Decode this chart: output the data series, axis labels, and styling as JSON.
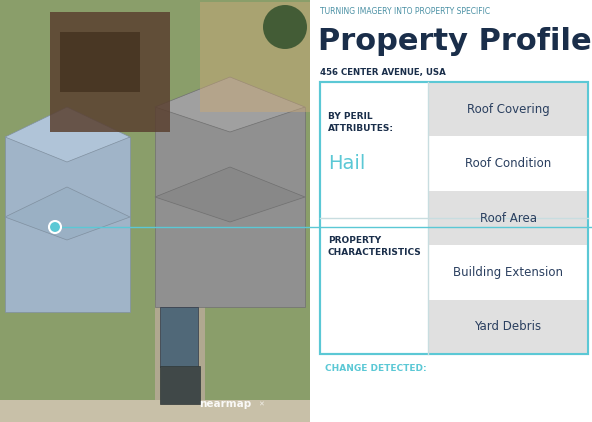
{
  "bg_color": "#ffffff",
  "tagline": "TURNING IMAGERY INTO PROPERTY SPECIFIC",
  "tagline_color": "#4a90a4",
  "title": "Property Profile",
  "title_color": "#1a2e4a",
  "address": "456 CENTER AVENUE, USA",
  "address_color": "#1a2e4a",
  "box_border_color": "#5bc8d5",
  "section1_label1": "BY PERIL",
  "section1_label2": "ATTRIBUTES:",
  "section1_value": "Hail",
  "section1_value_color": "#5bc8d5",
  "section1_label_color": "#1a2e4a",
  "section2_label1": "PROPERTY",
  "section2_label2": "CHARACTERISTICS",
  "section2_label_color": "#1a2e4a",
  "right_items": [
    {
      "text": "Roof Covering",
      "shaded": true
    },
    {
      "text": "Roof Condition",
      "shaded": false
    },
    {
      "text": "Roof Area",
      "shaded": true
    },
    {
      "text": "Building Extension",
      "shaded": false
    },
    {
      "text": "Yard Debris",
      "shaded": true
    }
  ],
  "shaded_item_color": "#e0e0e0",
  "item_text_color": "#2a3f5f",
  "change_detected_text": "CHANGE DETECTED:",
  "change_detected_color": "#5bc8d5",
  "connector_color": "#5bc8d5",
  "dot_color": "#5bc8d5",
  "nearmap_text": "nearmap",
  "divider_color": "#c8dde0",
  "grass_color": "#8a9e6a",
  "road_color": "#c8c0a8",
  "house1_color": "#a0b4c8",
  "house2_color": "#909090",
  "debris_color": "#5a4030",
  "car_color": "#404848"
}
